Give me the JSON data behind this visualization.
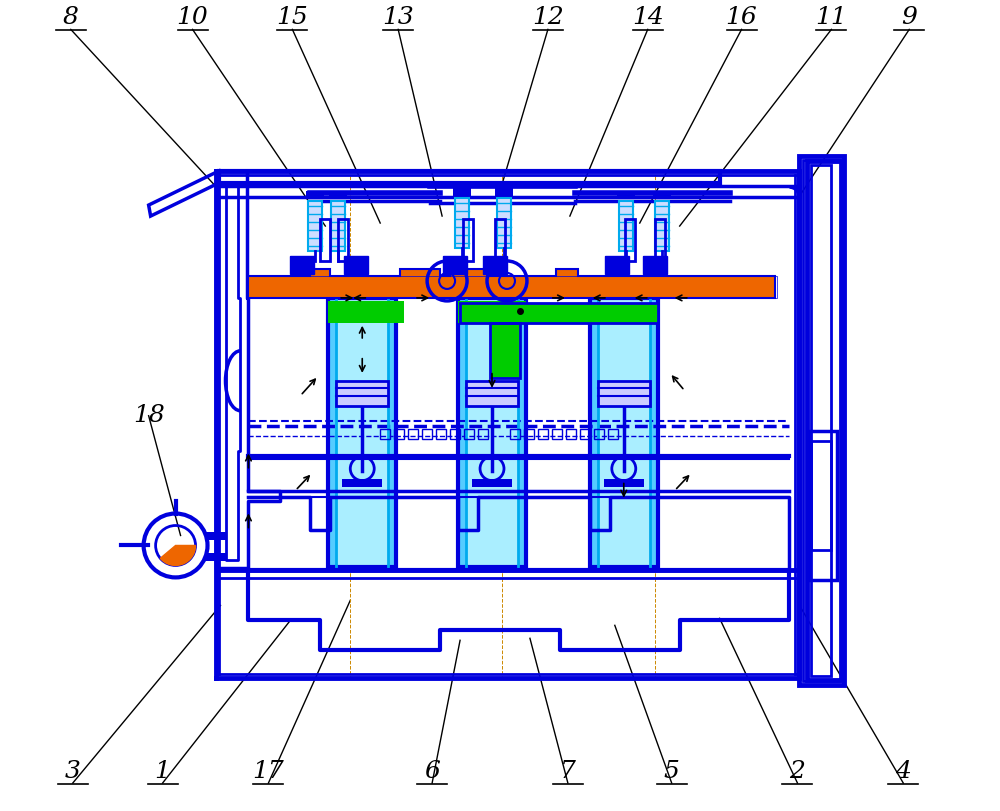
{
  "fig_width": 10.0,
  "fig_height": 8.11,
  "dpi": 100,
  "bg_color": "#ffffff",
  "B": "#0000DD",
  "C": "#00AAEE",
  "G": "#00CC00",
  "O": "#EE6600",
  "K": "#000000",
  "label_fontsize": 18,
  "top_labels": [
    [
      "8",
      70,
      28
    ],
    [
      "10",
      192,
      28
    ],
    [
      "15",
      292,
      28
    ],
    [
      "13",
      398,
      28
    ],
    [
      "12",
      548,
      28
    ],
    [
      "14",
      648,
      28
    ],
    [
      "16",
      742,
      28
    ],
    [
      "11",
      832,
      28
    ],
    [
      "9",
      910,
      28
    ]
  ],
  "bot_labels": [
    [
      "3",
      72,
      783
    ],
    [
      "1",
      162,
      783
    ],
    [
      "17",
      268,
      783
    ],
    [
      "6",
      432,
      783
    ],
    [
      "7",
      568,
      783
    ],
    [
      "5",
      672,
      783
    ],
    [
      "2",
      798,
      783
    ],
    [
      "4",
      904,
      783
    ]
  ],
  "label18": [
    148,
    415
  ]
}
